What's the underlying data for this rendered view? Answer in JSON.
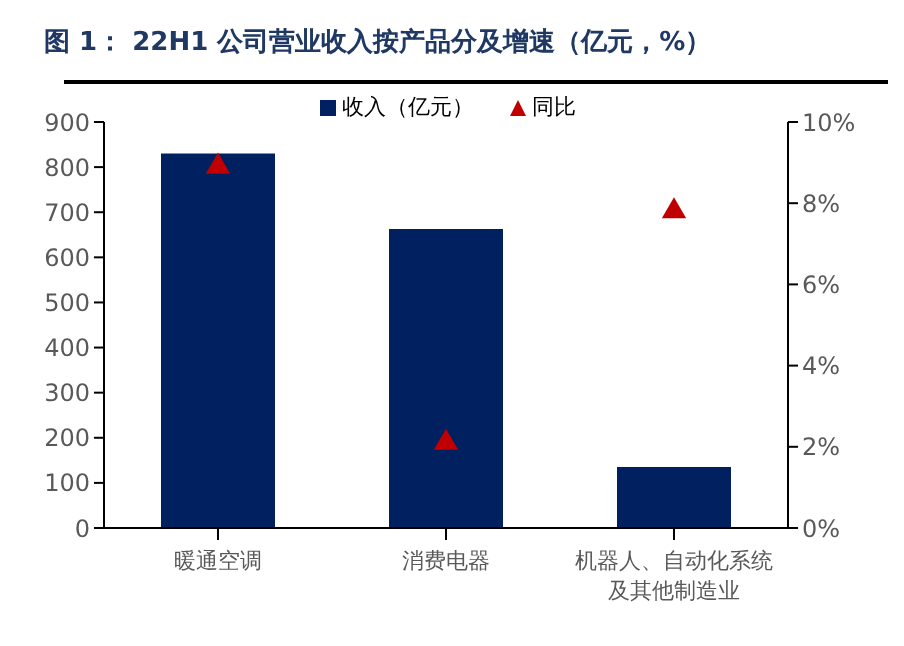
{
  "chart_data": {
    "type": "bar",
    "title": "图 1：  22H1 公司营业收入按产品分及增速（亿元，%）",
    "categories": [
      "暖通空调",
      "消费电器",
      "机器人、自动化系统及其他制造业"
    ],
    "series": [
      {
        "name": "收入（亿元）",
        "color": "#002060",
        "values": [
          830,
          663,
          135
        ]
      },
      {
        "name": "同比",
        "type": "scatter",
        "axis": "y2",
        "color": "#c00000",
        "marker": "triangle",
        "values": [
          8.9,
          2.1,
          7.8
        ]
      }
    ],
    "ylim": [
      0,
      900
    ],
    "yticks": [
      0,
      100,
      200,
      300,
      400,
      500,
      600,
      700,
      800,
      900
    ],
    "y2lim": [
      0,
      10
    ],
    "y2ticks": [
      {
        "value": 0,
        "label": "0%"
      },
      {
        "value": 2,
        "label": "2%"
      },
      {
        "value": 4,
        "label": "4%"
      },
      {
        "value": 6,
        "label": "6%"
      },
      {
        "value": 8,
        "label": "8%"
      },
      {
        "value": 10,
        "label": "10%"
      }
    ],
    "grid": false,
    "legend": "top"
  }
}
